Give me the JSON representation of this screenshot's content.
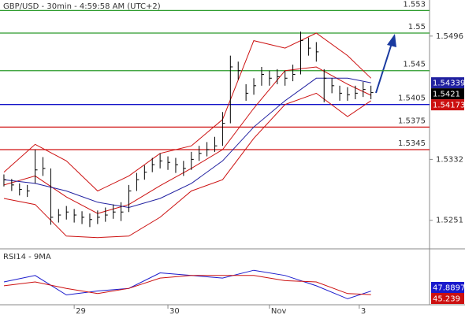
{
  "chart_data": [
    {
      "type": "ohlc",
      "title": "GBP/USD - 30min - 4:59:58 AM (UTC+2)",
      "xlim": [
        -0.5,
        54.5
      ],
      "xticks": [
        {
          "value": 9,
          "label": "29"
        },
        {
          "value": 21,
          "label": "30"
        },
        {
          "value": 34,
          "label": "Nov"
        },
        {
          "value": 45.5,
          "label": "3"
        }
      ],
      "ylim": [
        1.5213,
        1.5544
      ],
      "yticks": [
        1.5496,
        1.5332,
        1.5251
      ],
      "bar_color": "#000000",
      "high": [
        1.5312,
        1.5306,
        1.53,
        1.5298,
        1.5345,
        1.5335,
        1.532,
        1.5266,
        1.527,
        1.5266,
        1.5263,
        1.526,
        1.5264,
        1.5268,
        1.5272,
        1.5275,
        1.5298,
        1.5314,
        1.5324,
        1.5334,
        1.534,
        1.5336,
        1.5334,
        1.533,
        1.5342,
        1.535,
        1.5355,
        1.5362,
        1.5395,
        1.547,
        1.5462,
        1.5432,
        1.544,
        1.5455,
        1.545,
        1.5452,
        1.545,
        1.5458,
        1.5502,
        1.5494,
        1.5488,
        1.5452,
        1.544,
        1.543,
        1.5428,
        1.543,
        1.5435,
        1.543
      ],
      "low": [
        1.5296,
        1.529,
        1.5284,
        1.5282,
        1.53,
        1.531,
        1.5245,
        1.5248,
        1.5252,
        1.5248,
        1.5246,
        1.5242,
        1.5246,
        1.5249,
        1.5253,
        1.525,
        1.5262,
        1.529,
        1.5305,
        1.5315,
        1.532,
        1.5318,
        1.5314,
        1.531,
        1.5318,
        1.533,
        1.5336,
        1.5342,
        1.535,
        1.538,
        1.5438,
        1.541,
        1.5418,
        1.543,
        1.543,
        1.5432,
        1.543,
        1.5436,
        1.5445,
        1.547,
        1.5462,
        1.5408,
        1.542,
        1.541,
        1.541,
        1.5412,
        1.5415,
        1.5412
      ],
      "close": [
        1.5305,
        1.5298,
        1.5292,
        1.529,
        1.5318,
        1.532,
        1.5255,
        1.5258,
        1.5262,
        1.5258,
        1.5255,
        1.5252,
        1.5255,
        1.5258,
        1.5262,
        1.5262,
        1.529,
        1.5305,
        1.5315,
        1.5325,
        1.533,
        1.5328,
        1.5325,
        1.532,
        1.5332,
        1.534,
        1.5345,
        1.535,
        1.538,
        1.5455,
        1.545,
        1.542,
        1.543,
        1.5445,
        1.544,
        1.5442,
        1.544,
        1.5445,
        1.549,
        1.548,
        1.5475,
        1.544,
        1.543,
        1.542,
        1.5418,
        1.542,
        1.5425,
        1.5421
      ],
      "levels": [
        {
          "value": 1.553,
          "color": "#2a9a2a"
        },
        {
          "value": 1.55,
          "color": "#2a9a2a"
        },
        {
          "value": 1.545,
          "color": "#2a9a2a"
        },
        {
          "value": 1.5405,
          "color": "#1010c8"
        },
        {
          "value": 1.5375,
          "color": "#d01010"
        },
        {
          "value": 1.5345,
          "color": "#d01010"
        }
      ],
      "overlays": [
        {
          "color": "#cc1010",
          "last_value_tag": false,
          "x": [
            0,
            4,
            8,
            12,
            16,
            20,
            24,
            28,
            32,
            36,
            40,
            44,
            47
          ],
          "values": [
            1.5315,
            1.5352,
            1.533,
            1.529,
            1.531,
            1.534,
            1.535,
            1.5385,
            1.549,
            1.548,
            1.55,
            1.547,
            1.544
          ]
        },
        {
          "color": "#cc1010",
          "last_value_tag": true,
          "x": [
            0,
            4,
            8,
            12,
            16,
            20,
            24,
            28,
            32,
            36,
            40,
            44,
            47
          ],
          "values": [
            1.5298,
            1.531,
            1.5282,
            1.526,
            1.5272,
            1.5297,
            1.532,
            1.5345,
            1.54,
            1.545,
            1.5455,
            1.5432,
            1.54173
          ]
        },
        {
          "color": "#cc1010",
          "last_value_tag": false,
          "x": [
            0,
            4,
            8,
            12,
            16,
            20,
            24,
            28,
            32,
            36,
            40,
            44,
            47
          ],
          "values": [
            1.528,
            1.5272,
            1.523,
            1.5228,
            1.523,
            1.5255,
            1.529,
            1.5305,
            1.536,
            1.5405,
            1.542,
            1.5389,
            1.541
          ]
        },
        {
          "color": "#2020a0",
          "last_value_tag": true,
          "x": [
            0,
            4,
            8,
            12,
            16,
            20,
            24,
            28,
            32,
            36,
            40,
            44,
            47
          ],
          "values": [
            1.5305,
            1.53,
            1.529,
            1.5275,
            1.5268,
            1.528,
            1.53,
            1.533,
            1.5375,
            1.541,
            1.544,
            1.544,
            1.54339
          ]
        }
      ]
    },
    {
      "type": "line",
      "title": "RSI14 - 9MA",
      "xlim": [
        -0.5,
        54.5
      ],
      "ylim": [
        38,
        72
      ],
      "series": [
        {
          "color": "#1a1acc",
          "x": [
            0,
            4,
            8,
            12,
            16,
            20,
            24,
            28,
            32,
            36,
            40,
            44,
            47
          ],
          "values": [
            55,
            60,
            45,
            48,
            50,
            62,
            60,
            58,
            64,
            60,
            52,
            42,
            47.8897
          ]
        },
        {
          "color": "#cc1010",
          "x": [
            0,
            4,
            8,
            12,
            16,
            20,
            24,
            28,
            32,
            36,
            40,
            44,
            47
          ],
          "values": [
            52,
            55,
            50,
            46,
            50,
            58,
            60,
            60,
            60,
            56,
            55,
            46,
            45.239
          ]
        }
      ]
    }
  ]
}
